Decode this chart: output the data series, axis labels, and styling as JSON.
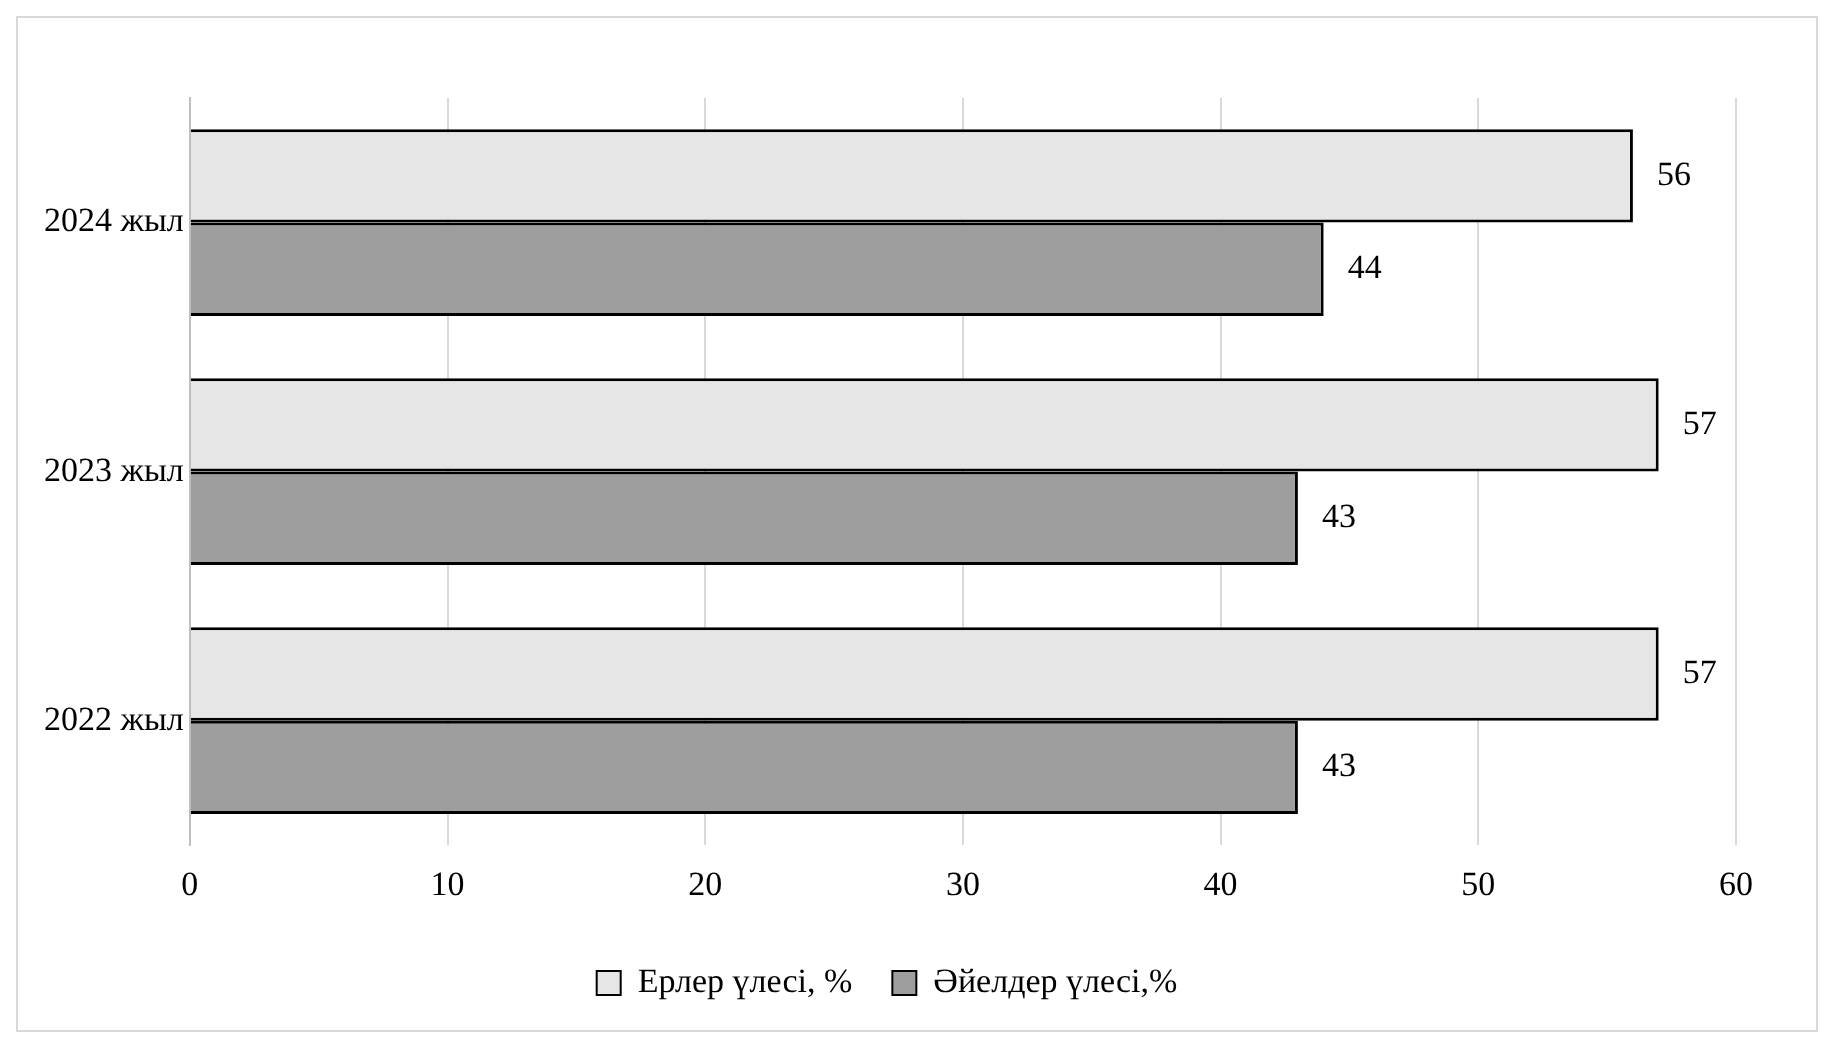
{
  "chart_data": {
    "type": "bar",
    "orientation": "horizontal",
    "categories": [
      "2024 жыл",
      "2023 жыл",
      "2022 жыл"
    ],
    "series": [
      {
        "name": "Ерлер үлесі, %",
        "color": "#e6e6e6",
        "values": [
          56,
          57,
          57
        ]
      },
      {
        "name": "Әйелдер үлесі,%",
        "color": "#9e9e9e",
        "values": [
          44,
          43,
          43
        ]
      }
    ],
    "xlim": [
      0,
      60
    ],
    "xticks": [
      0,
      10,
      20,
      30,
      40,
      50,
      60
    ],
    "grid": "x",
    "legend": "bottom",
    "data_labels": true
  }
}
